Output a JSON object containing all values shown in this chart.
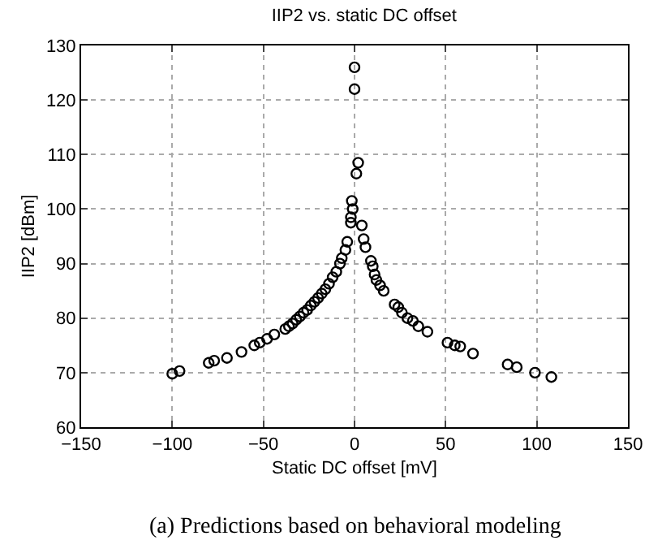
{
  "chart_data": {
    "type": "scatter",
    "title": "IIP2 vs. static DC offset",
    "xlabel": "Static DC offset [mV]",
    "ylabel": "IIP2 [dBm]",
    "annotations": [
      "(a) Predictions based on behavioral modeling"
    ],
    "x": [
      -100,
      -96,
      -80,
      -77,
      -70,
      -62,
      -55,
      -52,
      -48,
      -44,
      -38,
      -36,
      -34,
      -32,
      -30,
      -28,
      -26,
      -24,
      -22,
      -20,
      -18,
      -16,
      -14,
      -12,
      -10,
      -8,
      -7,
      -5,
      -4,
      -2,
      -2,
      -1,
      -1.5,
      0,
      0,
      1,
      2,
      4,
      5,
      6,
      9,
      10,
      11,
      12,
      14,
      16,
      22,
      24,
      26,
      29,
      32,
      35,
      40,
      51,
      55,
      58,
      65,
      84,
      89,
      99,
      108
    ],
    "values": [
      69.8,
      70.3,
      71.8,
      72.2,
      72.7,
      73.8,
      75,
      75.5,
      76.2,
      77,
      78,
      78.5,
      79,
      79.7,
      80.3,
      81,
      81.5,
      82.3,
      83,
      83.7,
      84.5,
      85.3,
      86.3,
      87.5,
      88.5,
      90,
      91,
      92.5,
      94,
      97.5,
      98.5,
      100,
      101.5,
      122,
      126,
      106.5,
      108.5,
      97,
      94.5,
      93,
      90.5,
      89.5,
      88,
      87,
      86,
      85,
      82.5,
      82,
      81,
      80,
      79.5,
      78.5,
      77.5,
      75.5,
      75,
      74.8,
      73.5,
      71.5,
      71,
      70,
      69.2
    ],
    "color": "#000000",
    "marker": "circle",
    "xlim": [
      -150,
      150
    ],
    "xticks": [
      -150,
      -100,
      -50,
      0,
      50,
      100,
      150
    ],
    "ylim": [
      60,
      130
    ],
    "yticks": [
      60,
      70,
      80,
      90,
      100,
      110,
      120,
      130
    ],
    "grid": true
  }
}
